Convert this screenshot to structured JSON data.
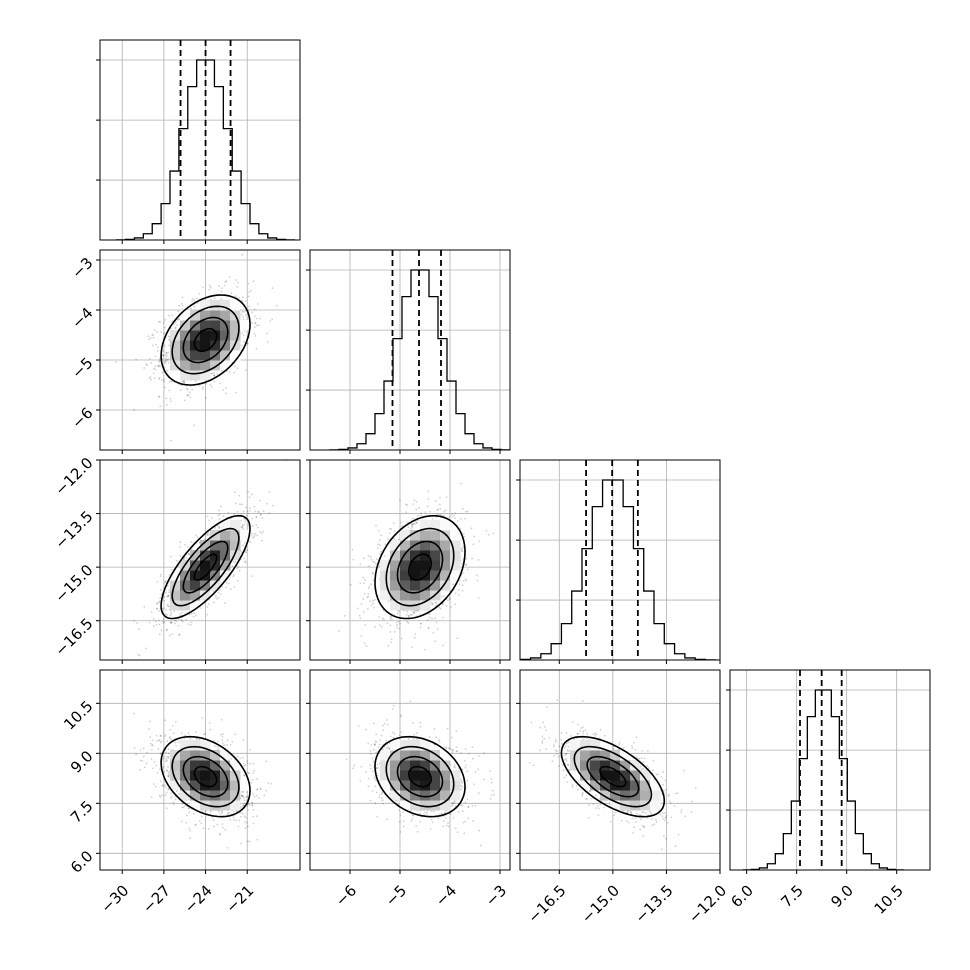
{
  "chart_data": {
    "type": "corner",
    "grid": true,
    "parameters": [
      {
        "range": [
          -31.6,
          -17.2
        ],
        "ticks": [
          -30,
          -27,
          -24,
          -21
        ],
        "tick_labels": [
          "−30",
          "−27",
          "−24",
          "−21"
        ],
        "mean": -24.0,
        "sd": 1.6,
        "quantiles": [
          -25.8,
          -24.0,
          -22.2
        ]
      },
      {
        "range": [
          -6.8,
          -2.8
        ],
        "ticks": [
          -6,
          -5,
          -4,
          -3
        ],
        "tick_labels": [
          "−6",
          "−5",
          "−4",
          "−3"
        ],
        "mean": -4.6,
        "sd": 0.45,
        "quantiles": [
          -5.15,
          -4.62,
          -4.18
        ]
      },
      {
        "range": [
          -17.6,
          -12.0
        ],
        "ticks": [
          -16.5,
          -15.0,
          -13.5,
          -12.0
        ],
        "tick_labels": [
          "−16.5",
          "−15.0",
          "−13.5",
          "−12.0"
        ],
        "mean": -15.0,
        "sd": 0.72,
        "quantiles": [
          -15.75,
          -15.02,
          -14.3
        ]
      },
      {
        "range": [
          5.5,
          11.5
        ],
        "ticks": [
          6.0,
          7.5,
          9.0,
          10.5
        ],
        "tick_labels": [
          "6.0",
          "7.5",
          "9.0",
          "10.5"
        ],
        "mean": 8.3,
        "sd": 0.6,
        "quantiles": [
          7.6,
          8.25,
          8.85
        ]
      }
    ],
    "correlations": [
      {
        "i": 0,
        "j": 1,
        "rho": 0.35
      },
      {
        "i": 0,
        "j": 2,
        "rho": 0.75
      },
      {
        "i": 1,
        "j": 2,
        "rho": 0.3
      },
      {
        "i": 0,
        "j": 3,
        "rho": -0.35
      },
      {
        "i": 1,
        "j": 3,
        "rho": -0.25
      },
      {
        "i": 2,
        "j": 3,
        "rho": -0.6
      }
    ],
    "contour_levels_sigma": [
      0.5,
      1.0,
      1.5,
      2.0
    ],
    "histogram_bins": 20
  }
}
